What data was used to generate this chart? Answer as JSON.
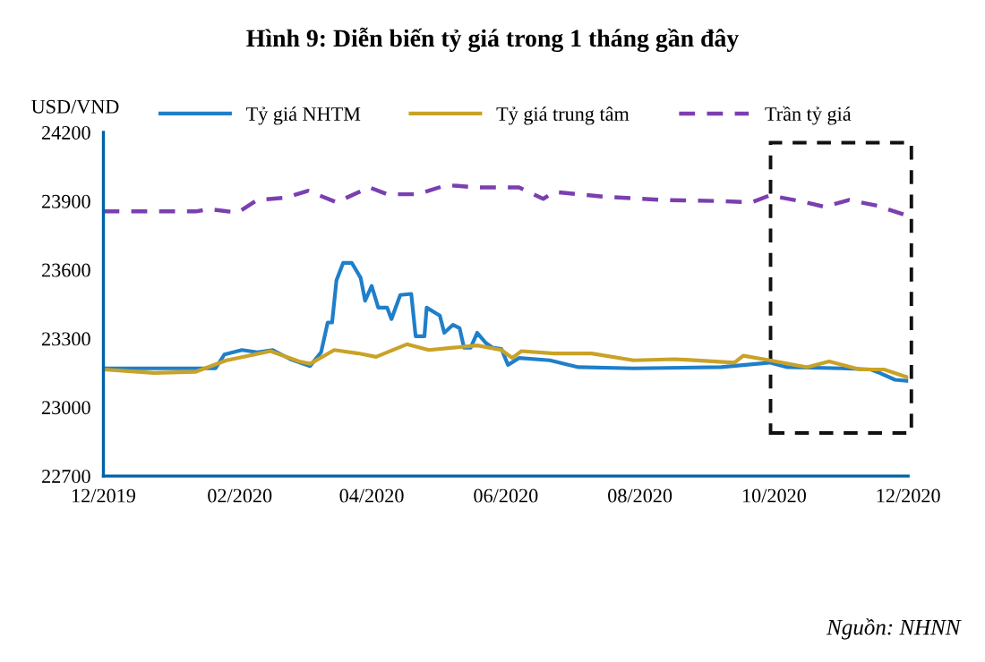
{
  "chart_data": {
    "type": "line",
    "title": "Hình 9: Diễn biến tỷ giá trong 1 tháng gần đây",
    "ylabel": "USD/VND",
    "annotations": [
      "Nguồn: NHNN"
    ],
    "xlim": [
      "2019-12-01",
      "2020-12-01"
    ],
    "xticks": [
      {
        "value": "2019-12-01",
        "label": "12/2019"
      },
      {
        "value": "2020-02-01",
        "label": "02/2020"
      },
      {
        "value": "2020-04-01",
        "label": "04/2020"
      },
      {
        "value": "2020-06-01",
        "label": "06/2020"
      },
      {
        "value": "2020-08-01",
        "label": "08/2020"
      },
      {
        "value": "2020-10-01",
        "label": "10/2020"
      },
      {
        "value": "2020-12-01",
        "label": "12/2020"
      }
    ],
    "ylim": [
      22700,
      24200
    ],
    "yticks": [
      22700,
      23000,
      23300,
      23600,
      23900,
      24200
    ],
    "grid": false,
    "legend": "top",
    "marker": "none",
    "series": [
      {
        "name": "Tỷ giá NHTM",
        "color": "#1f7fc9",
        "line_style": "solid",
        "x": [
          "2019-12-01",
          "2020-01-21",
          "2020-01-25",
          "2020-02-02",
          "2020-02-09",
          "2020-02-16",
          "2020-02-24",
          "2020-03-04",
          "2020-03-09",
          "2020-03-12",
          "2020-03-14",
          "2020-03-16",
          "2020-03-19",
          "2020-03-23",
          "2020-03-27",
          "2020-03-29",
          "2020-04-01",
          "2020-04-04",
          "2020-04-08",
          "2020-04-10",
          "2020-04-14",
          "2020-04-19",
          "2020-04-21",
          "2020-04-25",
          "2020-04-26",
          "2020-05-02",
          "2020-05-04",
          "2020-05-08",
          "2020-05-11",
          "2020-05-13",
          "2020-05-16",
          "2020-05-19",
          "2020-05-23",
          "2020-05-26",
          "2020-05-30",
          "2020-06-02",
          "2020-06-07",
          "2020-06-21",
          "2020-07-04",
          "2020-07-29",
          "2020-09-07",
          "2020-09-29",
          "2020-10-07",
          "2020-11-01",
          "2020-11-14",
          "2020-11-18",
          "2020-11-25",
          "2020-12-01"
        ],
        "values": [
          23170,
          23170,
          23230,
          23250,
          23240,
          23250,
          23210,
          23180,
          23240,
          23370,
          23370,
          23555,
          23630,
          23630,
          23565,
          23465,
          23530,
          23435,
          23435,
          23385,
          23490,
          23495,
          23310,
          23310,
          23435,
          23400,
          23325,
          23360,
          23345,
          23260,
          23260,
          23325,
          23280,
          23260,
          23255,
          23185,
          23215,
          23205,
          23175,
          23170,
          23175,
          23195,
          23175,
          23170,
          23165,
          23150,
          23120,
          23115
        ]
      },
      {
        "name": "Tỷ giá trung tâm",
        "color": "#c9a227",
        "line_style": "solid",
        "x": [
          "2019-12-01",
          "2019-12-24",
          "2020-01-12",
          "2020-01-26",
          "2020-02-15",
          "2020-02-28",
          "2020-03-04",
          "2020-03-15",
          "2020-03-26",
          "2020-04-03",
          "2020-04-17",
          "2020-04-27",
          "2020-05-08",
          "2020-05-19",
          "2020-05-30",
          "2020-06-04",
          "2020-06-08",
          "2020-06-23",
          "2020-07-10",
          "2020-07-29",
          "2020-08-17",
          "2020-09-13",
          "2020-09-17",
          "2020-09-29",
          "2020-10-16",
          "2020-10-26",
          "2020-11-09",
          "2020-11-20",
          "2020-12-01"
        ],
        "values": [
          23165,
          23150,
          23155,
          23205,
          23245,
          23200,
          23190,
          23250,
          23235,
          23220,
          23275,
          23250,
          23260,
          23270,
          23250,
          23215,
          23245,
          23235,
          23235,
          23205,
          23210,
          23195,
          23225,
          23205,
          23175,
          23200,
          23165,
          23165,
          23130
        ]
      },
      {
        "name": "Trần tỷ giá",
        "color": "#7b3fb0",
        "line_style": "dashed",
        "x": [
          "2019-12-01",
          "2019-12-24",
          "2020-01-12",
          "2020-01-18",
          "2020-01-31",
          "2020-02-09",
          "2020-02-22",
          "2020-03-03",
          "2020-03-16",
          "2020-03-31",
          "2020-04-08",
          "2020-04-22",
          "2020-05-05",
          "2020-05-19",
          "2020-05-30",
          "2020-06-07",
          "2020-06-18",
          "2020-06-23",
          "2020-07-15",
          "2020-08-11",
          "2020-09-07",
          "2020-09-21",
          "2020-09-29",
          "2020-10-13",
          "2020-10-24",
          "2020-11-04",
          "2020-11-17",
          "2020-12-01"
        ],
        "values": [
          23855,
          23855,
          23855,
          23865,
          23850,
          23905,
          23915,
          23945,
          23895,
          23960,
          23930,
          23930,
          23970,
          23960,
          23960,
          23960,
          23910,
          23940,
          23920,
          23905,
          23900,
          23895,
          23925,
          23900,
          23875,
          23905,
          23880,
          23835
        ]
      }
    ]
  }
}
